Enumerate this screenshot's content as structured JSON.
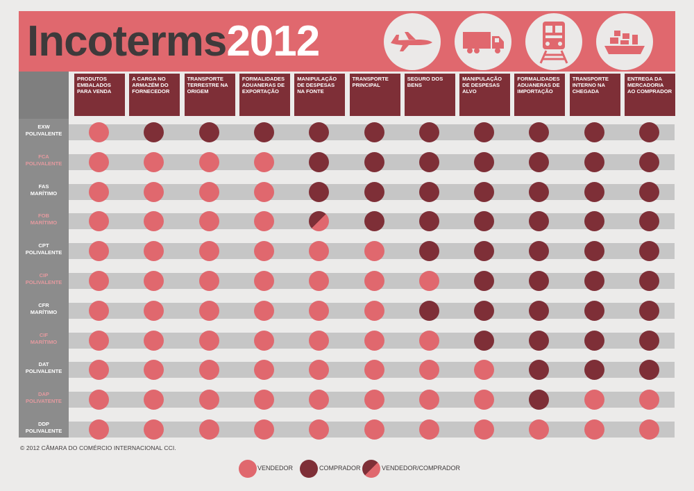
{
  "title": {
    "part1": "Incoterms",
    "part2": "2012"
  },
  "icons": [
    "airplane-icon",
    "truck-icon",
    "train-icon",
    "ship-icon"
  ],
  "colors": {
    "vendedor": "#e0686e",
    "comprador": "#7e2f37",
    "banner": "#e0686e",
    "header": "#7e2f37"
  },
  "columns": [
    "PRODUTOS EMBALADOS PARA VENDA",
    "A CARGA NO ARMAZÉM DO FORNECEDOR",
    "TRANSPORTE TERRESTRE NA ORIGEM",
    "FORMALIDADES ADUANERAS DE EXPORTAÇÃO",
    "MANIPULAÇÃO DE DESPESAS NA FONTE",
    "TRANSPORTE PRINCIPAL",
    "SEGURO DOS BENS",
    "MANIPULAÇÃO DE DESPESAS ALVO",
    "FORMALIDADES ADUANERAS DE IMPORTAÇÃO",
    "TRANSPORTE INTERNO NA CHEGADA",
    "ENTREGA DA MERCADORIA AO COMPRADOR"
  ],
  "rows": [
    {
      "code": "EXW",
      "mode": "POLIVALENTE",
      "cells": [
        "V",
        "C",
        "C",
        "C",
        "C",
        "C",
        "C",
        "C",
        "C",
        "C",
        "C"
      ]
    },
    {
      "code": "FCA",
      "mode": "POLIVALENTE",
      "cells": [
        "V",
        "V",
        "V",
        "V",
        "C",
        "C",
        "C",
        "C",
        "C",
        "C",
        "C"
      ]
    },
    {
      "code": "FAS",
      "mode": "MARÍTIMO",
      "cells": [
        "V",
        "V",
        "V",
        "V",
        "C",
        "C",
        "C",
        "C",
        "C",
        "C",
        "C"
      ]
    },
    {
      "code": "FOB",
      "mode": "MARÍTIMO",
      "cells": [
        "V",
        "V",
        "V",
        "V",
        "VC",
        "C",
        "C",
        "C",
        "C",
        "C",
        "C"
      ]
    },
    {
      "code": "CPT",
      "mode": "POLIVALENTE",
      "cells": [
        "V",
        "V",
        "V",
        "V",
        "V",
        "V",
        "C",
        "C",
        "C",
        "C",
        "C"
      ]
    },
    {
      "code": "CIP",
      "mode": "POLIVALENTE",
      "cells": [
        "V",
        "V",
        "V",
        "V",
        "V",
        "V",
        "V",
        "C",
        "C",
        "C",
        "C"
      ]
    },
    {
      "code": "CFR",
      "mode": "MARÍTIMO",
      "cells": [
        "V",
        "V",
        "V",
        "V",
        "V",
        "V",
        "C",
        "C",
        "C",
        "C",
        "C"
      ]
    },
    {
      "code": "CIF",
      "mode": "MARÍTIMO",
      "cells": [
        "V",
        "V",
        "V",
        "V",
        "V",
        "V",
        "V",
        "C",
        "C",
        "C",
        "C"
      ]
    },
    {
      "code": "DAT",
      "mode": "POLIVALENTE",
      "cells": [
        "V",
        "V",
        "V",
        "V",
        "V",
        "V",
        "V",
        "V",
        "C",
        "C",
        "C"
      ]
    },
    {
      "code": "DAP",
      "mode": "POLIVATENTE",
      "cells": [
        "V",
        "V",
        "V",
        "V",
        "V",
        "V",
        "V",
        "V",
        "C",
        "V",
        "V"
      ]
    },
    {
      "code": "DDP",
      "mode": "POLIVALENTE",
      "cells": [
        "V",
        "V",
        "V",
        "V",
        "V",
        "V",
        "V",
        "V",
        "V",
        "V",
        "V"
      ]
    }
  ],
  "copyright": "© 2012 CÂMARA DO COMÉRCIO INTERNACIONAL CCI.",
  "legend": [
    {
      "key": "V",
      "label": "VENDEDOR"
    },
    {
      "key": "C",
      "label": "COMPRADOR"
    },
    {
      "key": "VC",
      "label": "VENDEDOR/COMPRADOR"
    }
  ]
}
